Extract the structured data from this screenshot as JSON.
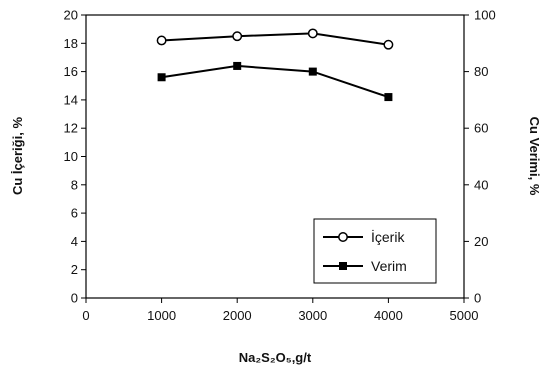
{
  "chart_data": {
    "type": "line",
    "xlabel": "Na₂S₂O₅,g/t",
    "ylabel_left": "Cu İçeriği, %",
    "ylabel_right": "Cu Verimi, %",
    "xlim": [
      0,
      5000
    ],
    "x_ticks": [
      0,
      1000,
      2000,
      3000,
      4000,
      5000
    ],
    "ylim_left": [
      0,
      20
    ],
    "y_ticks_left": [
      0,
      2,
      4,
      6,
      8,
      10,
      12,
      14,
      16,
      18,
      20
    ],
    "ylim_right": [
      0,
      100
    ],
    "y_ticks_right": [
      0,
      20,
      40,
      60,
      80,
      100
    ],
    "grid": false,
    "legend_placement": "bottom-right",
    "series": [
      {
        "name": "İçerik",
        "axis": "left",
        "marker": "open-circle",
        "color": "#000000",
        "x": [
          1000,
          2000,
          3000,
          4000
        ],
        "y": [
          18.2,
          18.5,
          18.7,
          17.9
        ]
      },
      {
        "name": "Verim",
        "axis": "right",
        "marker": "filled-square",
        "color": "#000000",
        "x": [
          1000,
          2000,
          3000,
          4000
        ],
        "y": [
          78,
          82,
          80,
          71
        ]
      }
    ]
  }
}
